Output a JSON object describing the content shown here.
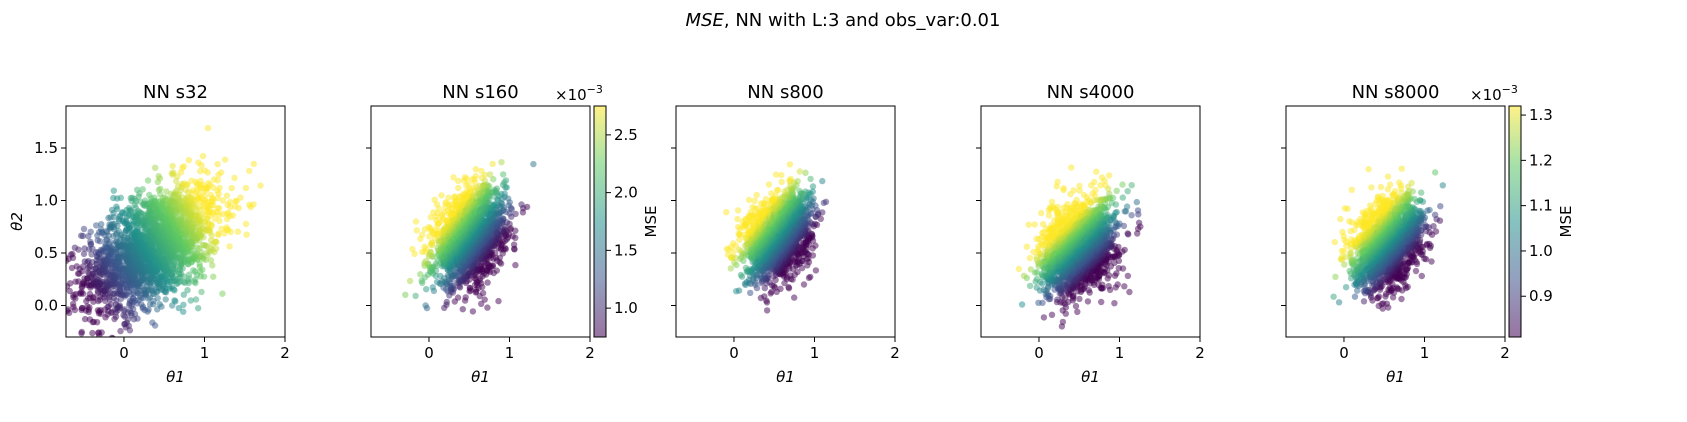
{
  "figure": {
    "suptitle_italic": "MSE",
    "suptitle_rest": ", NN with L:3 and obs_var:0.01"
  },
  "colormap": {
    "name": "viridis",
    "stops": [
      "#440154",
      "#3b528b",
      "#21918c",
      "#5ec962",
      "#fde725"
    ],
    "alpha": 0.5
  },
  "chart_data": [
    {
      "type": "scatter",
      "title": "NN s32",
      "xlabel": "θ1",
      "ylabel": "θ2",
      "xlim": [
        -0.72,
        2.0
      ],
      "ylim": [
        -0.3,
        1.9
      ],
      "xticks": [
        0,
        1,
        2
      ],
      "yticks": [
        0.0,
        0.5,
        1.0,
        1.5
      ],
      "cloud": {
        "center": [
          0.35,
          0.55
        ],
        "sd": [
          0.42,
          0.3
        ],
        "corr": 0.5,
        "n": 2200
      },
      "color_gradient": {
        "direction": [
          1.0,
          0.8
        ],
        "origin": [
          0.35,
          0.45
        ],
        "scale": 1.6
      },
      "colorbar": null
    },
    {
      "type": "scatter",
      "title": "NN s160",
      "xlabel": "θ1",
      "ylabel": "",
      "xlim": [
        -0.72,
        2.0
      ],
      "ylim": [
        -0.3,
        1.9
      ],
      "xticks": [
        0,
        1,
        2
      ],
      "yticks": [
        0.0,
        0.5,
        1.0,
        1.5
      ],
      "cloud": {
        "center": [
          0.5,
          0.65
        ],
        "sd": [
          0.22,
          0.22
        ],
        "corr": 0.3,
        "n": 1800
      },
      "color_gradient": {
        "direction": [
          -0.7,
          0.7
        ],
        "origin": [
          0.5,
          0.65
        ],
        "scale": 0.6
      },
      "colorbar": {
        "label": "MSE",
        "multiplier_base": "×10",
        "multiplier_exp": "−3",
        "ticks": [
          "1.0",
          "1.5",
          "2.0",
          "2.5"
        ],
        "tick_values": [
          1.0,
          1.5,
          2.0,
          2.5
        ],
        "range": [
          0.75,
          2.75
        ]
      }
    },
    {
      "type": "scatter",
      "title": "NN s800",
      "xlabel": "θ1",
      "ylabel": "",
      "xlim": [
        -0.72,
        2.0
      ],
      "ylim": [
        -0.3,
        1.9
      ],
      "xticks": [
        0,
        1,
        2
      ],
      "yticks": [
        0.0,
        0.5,
        1.0,
        1.5
      ],
      "cloud": {
        "center": [
          0.55,
          0.67
        ],
        "sd": [
          0.2,
          0.2
        ],
        "corr": 0.3,
        "n": 1800
      },
      "color_gradient": {
        "direction": [
          -0.7,
          0.7
        ],
        "origin": [
          0.55,
          0.67
        ],
        "scale": 0.55
      },
      "colorbar": null
    },
    {
      "type": "scatter",
      "title": "NN s4000",
      "xlabel": "θ1",
      "ylabel": "",
      "xlim": [
        -0.72,
        2.0
      ],
      "ylim": [
        -0.3,
        1.9
      ],
      "xticks": [
        0,
        1,
        2
      ],
      "yticks": [
        0.0,
        0.5,
        1.0,
        1.5
      ],
      "cloud": {
        "center": [
          0.5,
          0.55
        ],
        "sd": [
          0.23,
          0.22
        ],
        "corr": 0.3,
        "n": 1800
      },
      "color_gradient": {
        "direction": [
          -0.6,
          0.8
        ],
        "origin": [
          0.5,
          0.55
        ],
        "scale": 0.55
      },
      "colorbar": null
    },
    {
      "type": "scatter",
      "title": "NN s8000",
      "xlabel": "θ1",
      "ylabel": "",
      "xlim": [
        -0.72,
        2.0
      ],
      "ylim": [
        -0.3,
        1.9
      ],
      "xticks": [
        0,
        1,
        2
      ],
      "yticks": [
        0.0,
        0.5,
        1.0,
        1.5
      ],
      "cloud": {
        "center": [
          0.55,
          0.6
        ],
        "sd": [
          0.21,
          0.21
        ],
        "corr": 0.3,
        "n": 1800
      },
      "color_gradient": {
        "direction": [
          -0.6,
          0.7
        ],
        "origin": [
          0.55,
          0.6
        ],
        "scale": 0.55
      },
      "colorbar": {
        "label": "MSE",
        "multiplier_base": "×10",
        "multiplier_exp": "−3",
        "ticks": [
          "0.9",
          "1.0",
          "1.1",
          "1.2",
          "1.3"
        ],
        "tick_values": [
          0.9,
          1.0,
          1.1,
          1.2,
          1.3
        ],
        "range": [
          0.81,
          1.32
        ]
      }
    }
  ]
}
